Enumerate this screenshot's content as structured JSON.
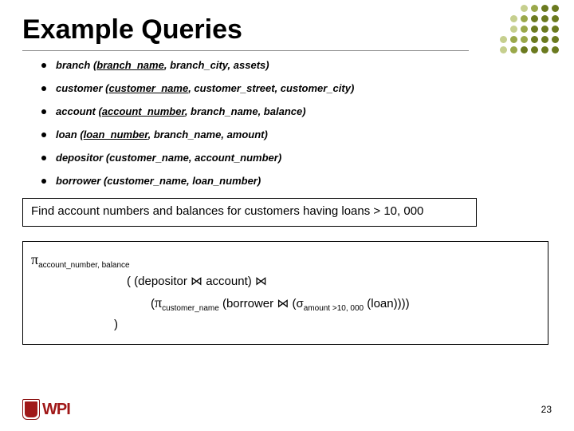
{
  "title": "Example Queries",
  "schemas": [
    {
      "name": "branch",
      "attrs_html": "<span class='u'>branch_name</span>, branch_city, assets"
    },
    {
      "name": "customer",
      "attrs_html": "<span class='u'>customer_name</span>, customer_street, customer_city"
    },
    {
      "name": "account",
      "attrs_html": "<span class='u'>account_number</span>, branch_name, balance"
    },
    {
      "name": "loan",
      "attrs_html": "<span class='u'>loan_number</span>, branch_name, amount"
    },
    {
      "name": "depositor",
      "attrs_html": "customer_name, account_number"
    },
    {
      "name": "borrower",
      "attrs_html": "customer_name, loan_number"
    }
  ],
  "query_text": "Find account numbers and balances for customers having loans > 10, 000",
  "ra": {
    "line1_pi_sub": "account_number, balance",
    "line2": "( (depositor ⋈ account) ⋈",
    "line3_pre": "(",
    "line3_pi_sub": "customer_name",
    "line3_mid": " (borrower ⋈ (σ",
    "line3_sigma_sub": "amount >10, 000",
    "line3_post": " (loan))))",
    "line4": ")"
  },
  "page_number": "23",
  "logo_text": "WPI",
  "dot_colors": {
    "c1": "#6b7a1f",
    "c2": "#9aa84a",
    "c3": "#c6cf8e"
  },
  "dot_grid": [
    [
      "",
      "",
      "c3",
      "c2",
      "c1",
      "c1"
    ],
    [
      "",
      "c3",
      "c2",
      "c1",
      "c1",
      "c1"
    ],
    [
      "",
      "c3",
      "c2",
      "c1",
      "c1",
      "c1"
    ],
    [
      "c3",
      "c2",
      "c2",
      "c1",
      "c1",
      "c1"
    ],
    [
      "c3",
      "c2",
      "c1",
      "c1",
      "c1",
      "c1"
    ]
  ]
}
